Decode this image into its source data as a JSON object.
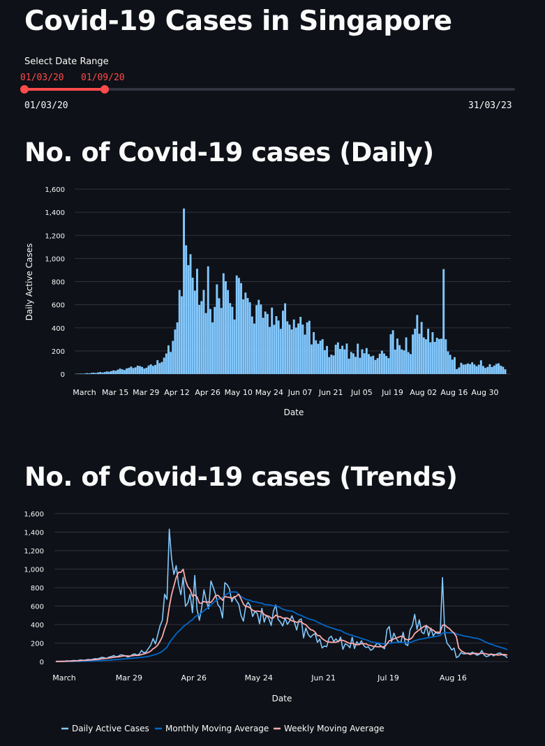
{
  "page": {
    "title": "Covid-19 Cases in Singapore"
  },
  "slider": {
    "label": "Select Date Range",
    "selected_start": "01/03/20",
    "selected_end": "01/09/20",
    "min_label": "01/03/20",
    "max_label": "31/03/23",
    "selected_fraction_start": 0,
    "selected_fraction_end": 0.165
  },
  "colors": {
    "background": "#0e1117",
    "accent": "#ff4b4b",
    "daily": "#83c9ff",
    "monthly": "#0068c9",
    "weekly": "#ffabab"
  },
  "daily_section": {
    "heading": "No. of Covid-19 cases (Daily)"
  },
  "trends_section": {
    "heading": "No. of Covid-19 cases (Trends)"
  },
  "chart_data": [
    {
      "type": "bar",
      "xlabel": "Date",
      "ylabel": "Daily Active Cases",
      "ylim": [
        0,
        1600
      ],
      "yticks": [
        0,
        200,
        400,
        600,
        800,
        1000,
        1200,
        1400,
        1600
      ],
      "ytick_labels": [
        "0",
        "200",
        "400",
        "600",
        "800",
        "1,000",
        "1,200",
        "1,400",
        "1,600"
      ],
      "xtick_labels": [
        "March",
        "Mar 15",
        "Mar 29",
        "Apr 12",
        "Apr 26",
        "May 10",
        "May 24",
        "Jun 07",
        "Jun 21",
        "Jul 05",
        "Jul 19",
        "Aug 02",
        "Aug 16",
        "Aug 30"
      ],
      "xtick_days": [
        0,
        14,
        28,
        42,
        56,
        70,
        84,
        98,
        112,
        126,
        140,
        154,
        168,
        182
      ],
      "grid": true,
      "values": [
        2,
        3,
        4,
        3,
        5,
        8,
        6,
        10,
        12,
        9,
        14,
        18,
        13,
        17,
        23,
        20,
        26,
        32,
        29,
        38,
        47,
        41,
        35,
        49,
        54,
        65,
        52,
        58,
        73,
        69,
        62,
        48,
        55,
        74,
        84,
        71,
        79,
        120,
        95,
        105,
        142,
        178,
        248,
        191,
        287,
        386,
        447,
        728,
        673,
        1432,
        1114,
        942,
        1037,
        834,
        722,
        911,
        598,
        631,
        728,
        528,
        932,
        563,
        447,
        581,
        776,
        656,
        572,
        872,
        803,
        727,
        614,
        582,
        472,
        853,
        832,
        787,
        646,
        705,
        658,
        621,
        498,
        437,
        596,
        642,
        602,
        487,
        541,
        520,
        408,
        575,
        426,
        501,
        463,
        391,
        548,
        612,
        456,
        428,
        386,
        472,
        402,
        438,
        495,
        428,
        341,
        447,
        461,
        256,
        363,
        292,
        262,
        289,
        302,
        207,
        243,
        147,
        168,
        161,
        254,
        274,
        217,
        245,
        213,
        264,
        133,
        191,
        179,
        149,
        263,
        141,
        214,
        180,
        225,
        173,
        152,
        159,
        122,
        138,
        176,
        202,
        178,
        157,
        138,
        345,
        379,
        212,
        307,
        250,
        213,
        205,
        317,
        190,
        173,
        342,
        392,
        511,
        349,
        451,
        317,
        301,
        392,
        275,
        362,
        278,
        314,
        303,
        306,
        908,
        301,
        196,
        166,
        125,
        146,
        43,
        57,
        97,
        82,
        84,
        92,
        86,
        102,
        83,
        68,
        81,
        119,
        70,
        53,
        62,
        85,
        61,
        73,
        88,
        93,
        72,
        63,
        41
      ]
    },
    {
      "type": "line",
      "xlabel": "Date",
      "ylim": [
        0,
        1600
      ],
      "yticks": [
        0,
        200,
        400,
        600,
        800,
        1000,
        1200,
        1400,
        1600
      ],
      "ytick_labels": [
        "0",
        "200",
        "400",
        "600",
        "800",
        "1,000",
        "1,200",
        "1,400",
        "1,600"
      ],
      "xtick_labels": [
        "March",
        "Mar 29",
        "Apr 26",
        "May 24",
        "Jun 21",
        "Jul 19",
        "Aug 16"
      ],
      "xtick_days": [
        0,
        28,
        56,
        84,
        112,
        140,
        168
      ],
      "grid": true,
      "legend": "bottom",
      "series": [
        {
          "name": "Daily Active Cases",
          "source": "daily"
        },
        {
          "name": "Monthly Moving Average",
          "source": "monthly"
        },
        {
          "name": "Weekly Moving Average",
          "source": "weekly"
        }
      ]
    }
  ]
}
